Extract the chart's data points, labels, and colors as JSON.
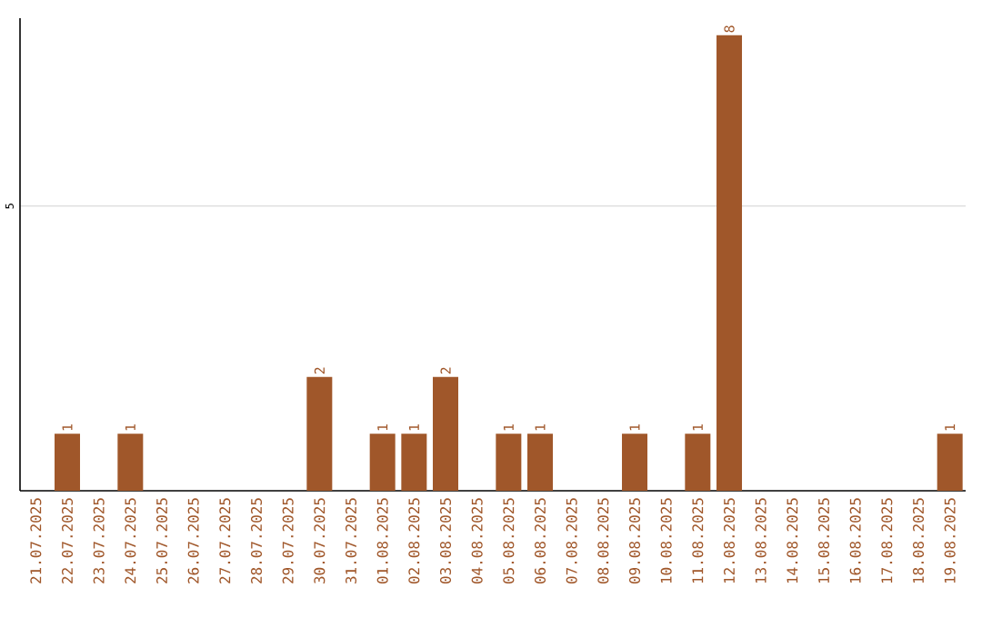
{
  "chart_data": {
    "type": "bar",
    "categories": [
      "21.07.2025",
      "22.07.2025",
      "23.07.2025",
      "24.07.2025",
      "25.07.2025",
      "26.07.2025",
      "27.07.2025",
      "28.07.2025",
      "29.07.2025",
      "30.07.2025",
      "31.07.2025",
      "01.08.2025",
      "02.08.2025",
      "03.08.2025",
      "04.08.2025",
      "05.08.2025",
      "06.08.2025",
      "07.08.2025",
      "08.08.2025",
      "09.08.2025",
      "10.08.2025",
      "11.08.2025",
      "12.08.2025",
      "13.08.2025",
      "14.08.2025",
      "15.08.2025",
      "16.08.2025",
      "17.08.2025",
      "18.08.2025",
      "19.08.2025"
    ],
    "values": [
      0,
      1,
      0,
      1,
      0,
      0,
      0,
      0,
      0,
      2,
      0,
      1,
      1,
      2,
      0,
      1,
      1,
      0,
      0,
      1,
      0,
      1,
      8,
      0,
      0,
      0,
      0,
      0,
      0,
      1
    ],
    "value_labels": [
      null,
      "1",
      null,
      "1",
      null,
      null,
      null,
      null,
      null,
      "2",
      null,
      "1",
      "1",
      "2",
      null,
      "1",
      "1",
      null,
      null,
      "1",
      null,
      "1",
      "8",
      null,
      null,
      null,
      null,
      null,
      null,
      "1"
    ],
    "color": "#a0572a",
    "ylim": [
      0,
      8.3
    ],
    "yticks": [
      5
    ],
    "grid": "y"
  }
}
